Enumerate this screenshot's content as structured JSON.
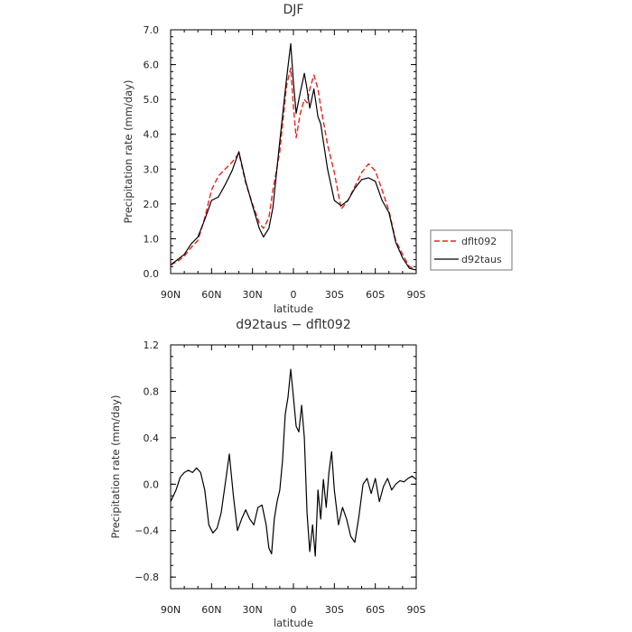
{
  "chart_data": [
    {
      "type": "line",
      "title": "DJF",
      "xlabel": "latitude",
      "ylabel": "Precipitation rate (mm/day)",
      "x_ticks": [
        "90N",
        "60N",
        "30N",
        "0",
        "30S",
        "60S",
        "90S"
      ],
      "y_ticks": [
        "0.0",
        "1.0",
        "2.0",
        "3.0",
        "4.0",
        "5.0",
        "6.0",
        "7.0"
      ],
      "xlim": [
        90,
        -90
      ],
      "ylim": [
        0,
        7
      ],
      "legend_position": "right",
      "colors": {
        "dflt092": "#e8231f",
        "d92taus": "#000000"
      },
      "x": [
        90,
        85,
        80,
        75,
        70,
        65,
        60,
        55,
        50,
        45,
        40,
        35,
        30,
        25,
        22,
        18,
        15,
        10,
        5,
        2,
        0,
        -2,
        -5,
        -8,
        -10,
        -12,
        -15,
        -18,
        -20,
        -25,
        -30,
        -35,
        -40,
        -45,
        -50,
        -55,
        -60,
        -65,
        -70,
        -75,
        -80,
        -85,
        -90
      ],
      "series": [
        {
          "name": "dflt092",
          "values": [
            0.25,
            0.35,
            0.5,
            0.75,
            0.95,
            1.6,
            2.4,
            2.8,
            3.0,
            3.2,
            3.45,
            2.6,
            2.0,
            1.45,
            1.3,
            1.6,
            2.4,
            3.5,
            5.4,
            5.9,
            4.8,
            3.9,
            4.6,
            5.0,
            4.9,
            5.3,
            5.7,
            5.3,
            4.8,
            3.7,
            2.9,
            1.85,
            2.1,
            2.5,
            2.9,
            3.15,
            2.95,
            2.4,
            1.8,
            0.95,
            0.55,
            0.2,
            0.1
          ]
        },
        {
          "name": "d92taus",
          "values": [
            0.25,
            0.4,
            0.55,
            0.85,
            1.05,
            1.55,
            2.1,
            2.2,
            2.55,
            2.95,
            3.5,
            2.65,
            1.95,
            1.3,
            1.05,
            1.3,
            1.9,
            3.8,
            5.6,
            6.6,
            5.5,
            4.6,
            5.2,
            5.75,
            5.3,
            4.75,
            5.3,
            4.5,
            4.3,
            3.0,
            2.1,
            1.95,
            2.1,
            2.45,
            2.7,
            2.75,
            2.65,
            2.1,
            1.75,
            0.9,
            0.45,
            0.15,
            0.1
          ]
        }
      ]
    },
    {
      "type": "line",
      "title": "d92taus − dflt092",
      "xlabel": "latitude",
      "ylabel": "Precipitation rate (mm/day)",
      "x_ticks": [
        "90N",
        "60N",
        "30N",
        "0",
        "30S",
        "60S",
        "90S"
      ],
      "y_ticks": [
        "−0.8",
        "−0.4",
        "0.0",
        "0.4",
        "0.8",
        "1.2"
      ],
      "xlim": [
        90,
        -90
      ],
      "ylim": [
        -0.9,
        1.2
      ],
      "x": [
        90,
        86,
        83,
        80,
        77,
        74,
        71,
        68,
        65,
        62,
        59,
        56,
        53,
        50,
        47,
        44,
        41,
        38,
        35,
        32,
        29,
        26,
        23,
        20,
        18,
        16,
        14,
        12,
        10,
        8,
        6,
        4,
        2,
        0,
        -2,
        -4,
        -6,
        -8,
        -10,
        -12,
        -14,
        -16,
        -18,
        -20,
        -22,
        -24,
        -26,
        -28,
        -30,
        -33,
        -36,
        -39,
        -42,
        -45,
        -48,
        -51,
        -54,
        -57,
        -60,
        -63,
        -66,
        -69,
        -72,
        -75,
        -78,
        -81,
        -84,
        -87,
        -90
      ],
      "series": [
        {
          "name": "d92taus − dflt092",
          "values": [
            -0.15,
            -0.05,
            0.06,
            0.1,
            0.12,
            0.1,
            0.14,
            0.1,
            -0.05,
            -0.35,
            -0.42,
            -0.38,
            -0.25,
            0.0,
            0.26,
            -0.1,
            -0.4,
            -0.3,
            -0.22,
            -0.3,
            -0.35,
            -0.2,
            -0.18,
            -0.35,
            -0.55,
            -0.6,
            -0.3,
            -0.15,
            -0.05,
            0.2,
            0.6,
            0.75,
            0.99,
            0.75,
            0.5,
            0.45,
            0.68,
            0.4,
            -0.25,
            -0.58,
            -0.35,
            -0.62,
            -0.05,
            -0.3,
            0.04,
            -0.2,
            0.1,
            0.28,
            -0.05,
            -0.35,
            -0.2,
            -0.3,
            -0.45,
            -0.5,
            -0.28,
            0.0,
            0.05,
            -0.08,
            0.05,
            -0.15,
            -0.02,
            0.05,
            -0.05,
            0.0,
            0.03,
            0.02,
            0.05,
            0.07,
            0.04
          ]
        }
      ]
    }
  ]
}
